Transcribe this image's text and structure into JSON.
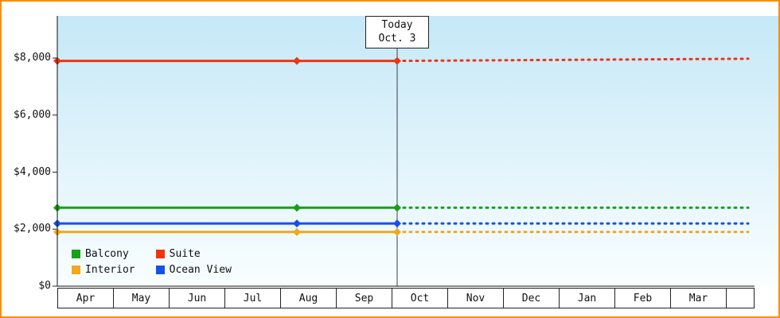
{
  "window": {
    "border_color": "#ff8c00"
  },
  "chart_data": {
    "type": "line",
    "title": "",
    "x_axis": {
      "months": [
        "Apr",
        "May",
        "Jun",
        "Jul",
        "Aug",
        "Sep",
        "Oct",
        "Nov",
        "Dec",
        "Jan",
        "Feb",
        "Mar"
      ]
    },
    "y_axis": {
      "min": 0,
      "max": 8800,
      "ticks": [
        {
          "v": 0,
          "label": "$0"
        },
        {
          "v": 2000,
          "label": "$2,000"
        },
        {
          "v": 4000,
          "label": "$4,000"
        },
        {
          "v": 6000,
          "label": "$6,000"
        },
        {
          "v": 8000,
          "label": "$8,000"
        }
      ]
    },
    "today": {
      "line1": "Today",
      "line2": "Oct. 3",
      "month_position": 6.1
    },
    "grid": false,
    "legend_position": "bottom-left-inside",
    "plot_background": {
      "top": "#c6e8f7",
      "bottom": "#f9feff"
    },
    "note": "solid = past prices (Apr 1 to today Oct 3), dotted = projected prices after today; points are [month_index_from_Apr, price_usd]",
    "series": [
      {
        "name": "Balcony",
        "color": "#17a017",
        "solid": [
          [
            0,
            2750
          ],
          [
            4.3,
            2750
          ],
          [
            6.1,
            2750
          ]
        ],
        "dotted": [
          [
            6.1,
            2750
          ],
          [
            12.4,
            2750
          ]
        ],
        "marker_months": [
          0,
          4.3,
          6.1
        ]
      },
      {
        "name": "Suite",
        "color": "#ee3512",
        "solid": [
          [
            0,
            7900
          ],
          [
            4.3,
            7900
          ],
          [
            6.1,
            7900
          ]
        ],
        "dotted": [
          [
            6.1,
            7900
          ],
          [
            12.4,
            7975
          ]
        ],
        "marker_months": [
          0,
          4.3,
          6.1
        ]
      },
      {
        "name": "Interior",
        "color": "#f0a81c",
        "solid": [
          [
            0,
            1900
          ],
          [
            4.3,
            1900
          ],
          [
            6.1,
            1900
          ]
        ],
        "dotted": [
          [
            6.1,
            1900
          ],
          [
            12.4,
            1900
          ]
        ],
        "marker_months": [
          0,
          4.3,
          6.1
        ]
      },
      {
        "name": "Ocean View",
        "color": "#1551e8",
        "solid": [
          [
            0,
            2200
          ],
          [
            4.3,
            2200
          ],
          [
            6.1,
            2200
          ]
        ],
        "dotted": [
          [
            6.1,
            2200
          ],
          [
            12.4,
            2200
          ]
        ],
        "marker_months": [
          0,
          4.3,
          6.1
        ]
      }
    ]
  }
}
